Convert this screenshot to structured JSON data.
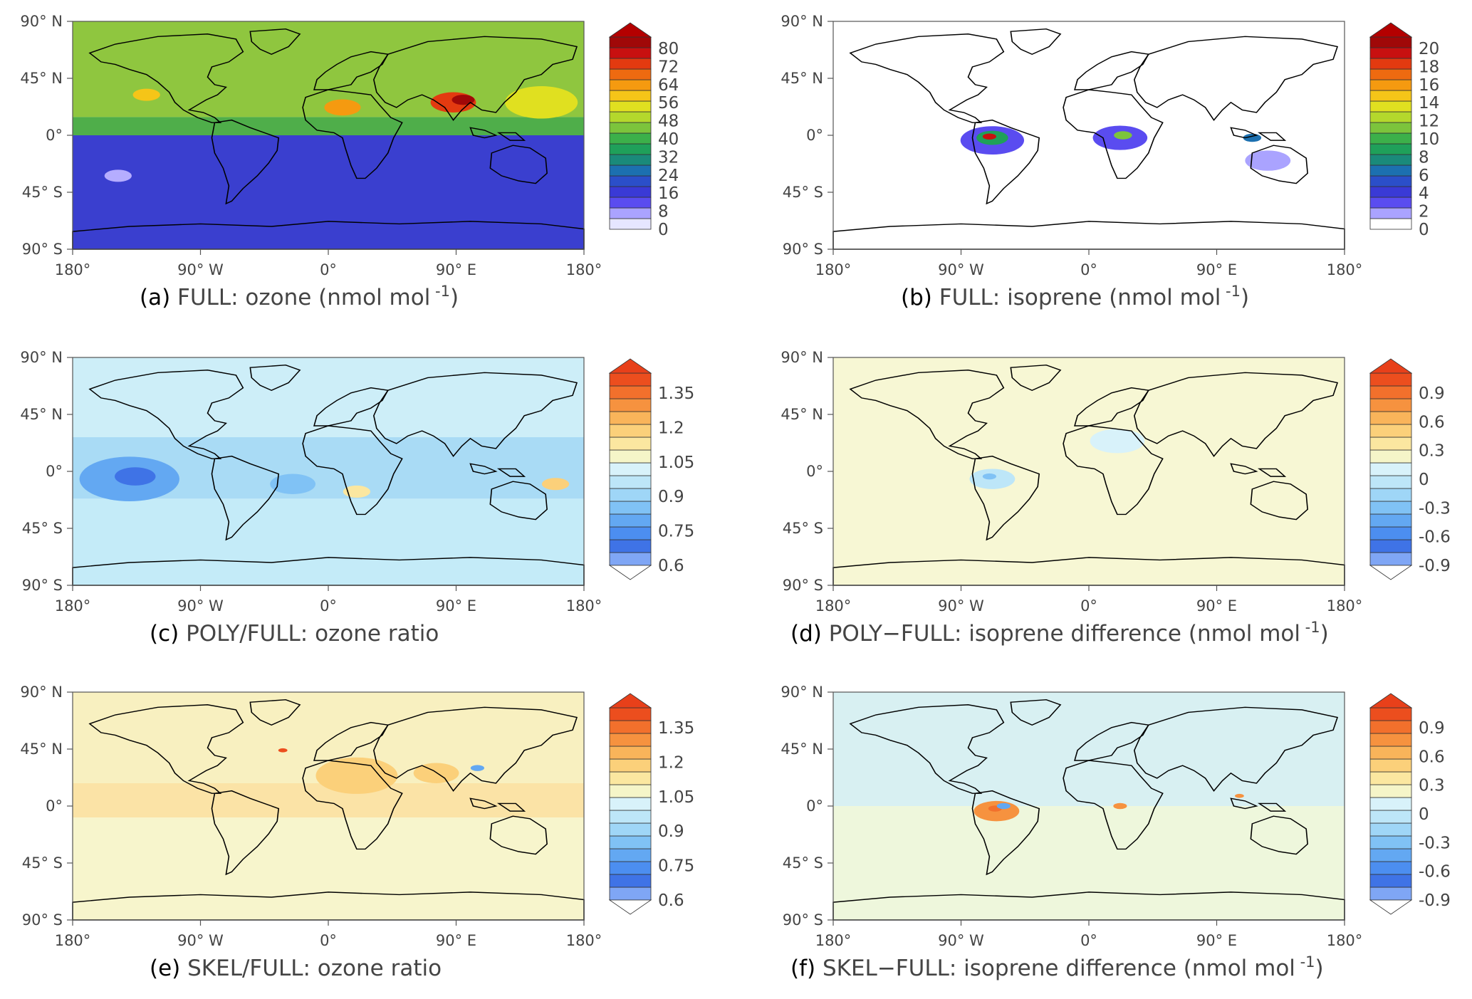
{
  "lat_ticks": [
    "90° N",
    "45° N",
    "0°",
    "45° S",
    "90° S"
  ],
  "lon_ticks": [
    "180°",
    "90° W",
    "0°",
    "90° E",
    "180°"
  ],
  "panels": [
    {
      "letter": "(a)",
      "caption": "FULL: ozone (nmol mol",
      "unit_sup": "-1",
      "caption_tail": ")",
      "variable": "ozone mixing ratio",
      "colorbar": {
        "labels": [
          "80",
          "72",
          "64",
          "56",
          "48",
          "40",
          "32",
          "24",
          "16",
          "8",
          "0"
        ],
        "colors": [
          "#e6e6ff",
          "#aaa3ff",
          "#5a4cf0",
          "#3a3ad6",
          "#2b4fc9",
          "#1c70b0",
          "#1a8a7a",
          "#1fa05a",
          "#3cb04a",
          "#7cc43c",
          "#b4d82c",
          "#e0e020",
          "#f5c518",
          "#f59a10",
          "#ee6a10",
          "#e33a10",
          "#c81010",
          "#a00808"
        ],
        "top_triangle": "#b40000",
        "bottom_triangle": false
      }
    },
    {
      "letter": "(b)",
      "caption": "FULL: isoprene (nmol mol",
      "unit_sup": "-1",
      "caption_tail": ")",
      "variable": "isoprene mixing ratio",
      "colorbar": {
        "labels": [
          "20",
          "18",
          "16",
          "14",
          "12",
          "10",
          "8",
          "6",
          "4",
          "2",
          "0"
        ],
        "colors": [
          "#ffffff",
          "#aaa3ff",
          "#5a4cf0",
          "#3a3ad6",
          "#2b4fc9",
          "#1c70b0",
          "#1a8a7a",
          "#1fa05a",
          "#3cb04a",
          "#7cc43c",
          "#b4d82c",
          "#e0e020",
          "#f5c518",
          "#f59a10",
          "#ee6a10",
          "#e33a10",
          "#c81010",
          "#a00808"
        ],
        "top_triangle": "#b40000",
        "bottom_triangle": false
      }
    },
    {
      "letter": "(c)",
      "caption": "POLY/FULL: ozone ratio",
      "unit_sup": "",
      "caption_tail": "",
      "variable": "ozone ratio",
      "colorbar": {
        "labels": [
          "1.35",
          "1.2",
          "1.05",
          "0.9",
          "0.75",
          "0.6"
        ],
        "colors": [
          "#7fa6f5",
          "#3f73e6",
          "#4c8ef0",
          "#63a8f2",
          "#80c2f5",
          "#9fd6f7",
          "#bde6f8",
          "#d8f2fa",
          "#f5f5c8",
          "#fbe7a0",
          "#fbd07a",
          "#f9b45a",
          "#f6923f",
          "#f2702c",
          "#ec4e1e"
        ],
        "top_triangle": "#e8401a",
        "bottom_triangle": true
      }
    },
    {
      "letter": "(d)",
      "caption": "POLY−FULL: isoprene difference (nmol mol",
      "unit_sup": "-1",
      "caption_tail": ")",
      "variable": "isoprene difference",
      "colorbar": {
        "labels": [
          "0.9",
          "0.6",
          "0.3",
          "0",
          "-0.3",
          "-0.6",
          "-0.9"
        ],
        "colors": [
          "#7fa6f5",
          "#3f73e6",
          "#4c8ef0",
          "#63a8f2",
          "#80c2f5",
          "#9fd6f7",
          "#bde6f8",
          "#d8f2fa",
          "#f5f5c8",
          "#fbe7a0",
          "#fbd07a",
          "#f9b45a",
          "#f6923f",
          "#f2702c",
          "#ec4e1e"
        ],
        "top_triangle": "#e8401a",
        "bottom_triangle": true
      }
    },
    {
      "letter": "(e)",
      "caption": "SKEL/FULL: ozone ratio",
      "unit_sup": "",
      "caption_tail": "",
      "variable": "ozone ratio",
      "colorbar": {
        "labels": [
          "1.35",
          "1.2",
          "1.05",
          "0.9",
          "0.75",
          "0.6"
        ],
        "colors": [
          "#7fa6f5",
          "#3f73e6",
          "#4c8ef0",
          "#63a8f2",
          "#80c2f5",
          "#9fd6f7",
          "#bde6f8",
          "#d8f2fa",
          "#f5f5c8",
          "#fbe7a0",
          "#fbd07a",
          "#f9b45a",
          "#f6923f",
          "#f2702c",
          "#ec4e1e"
        ],
        "top_triangle": "#e8401a",
        "bottom_triangle": true
      }
    },
    {
      "letter": "(f)",
      "caption": "SKEL−FULL: isoprene difference (nmol mol",
      "unit_sup": "-1",
      "caption_tail": ")",
      "variable": "isoprene difference",
      "colorbar": {
        "labels": [
          "0.9",
          "0.6",
          "0.3",
          "0",
          "-0.3",
          "-0.6",
          "-0.9"
        ],
        "colors": [
          "#7fa6f5",
          "#3f73e6",
          "#4c8ef0",
          "#63a8f2",
          "#80c2f5",
          "#9fd6f7",
          "#bde6f8",
          "#d8f2fa",
          "#f5f5c8",
          "#fbe7a0",
          "#fbd07a",
          "#f9b45a",
          "#f6923f",
          "#f2702c",
          "#ec4e1e"
        ],
        "top_triangle": "#e8401a",
        "bottom_triangle": true
      }
    }
  ]
}
